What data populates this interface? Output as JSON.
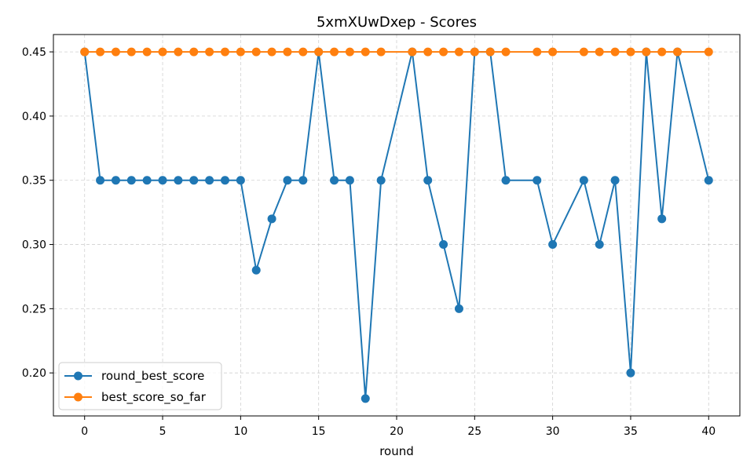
{
  "chart_data": {
    "type": "line",
    "title": "5xmXUwDxep - Scores",
    "xlabel": "round",
    "ylabel": "",
    "xlim": [
      -2,
      42
    ],
    "ylim": [
      0.1665,
      0.4635
    ],
    "xticks": [
      0,
      5,
      10,
      15,
      20,
      25,
      30,
      35,
      40
    ],
    "xtick_labels": [
      "0",
      "5",
      "10",
      "15",
      "20",
      "25",
      "30",
      "35",
      "40"
    ],
    "yticks": [
      0.2,
      0.25,
      0.3,
      0.35,
      0.4,
      0.45
    ],
    "ytick_labels": [
      "0.20",
      "0.25",
      "0.30",
      "0.35",
      "0.40",
      "0.45"
    ],
    "grid": true,
    "legend_position": "lower-left",
    "series": [
      {
        "name": "round_best_score",
        "color": "#1f77b4",
        "x": [
          0,
          1,
          2,
          3,
          4,
          5,
          6,
          7,
          8,
          9,
          10,
          11,
          12,
          13,
          14,
          15,
          16,
          17,
          18,
          19,
          21,
          22,
          23,
          24,
          25,
          26,
          27,
          29,
          30,
          32,
          33,
          34,
          35,
          36,
          37,
          38,
          40
        ],
        "y": [
          0.45,
          0.35,
          0.35,
          0.35,
          0.35,
          0.35,
          0.35,
          0.35,
          0.35,
          0.35,
          0.35,
          0.28,
          0.32,
          0.35,
          0.35,
          0.45,
          0.35,
          0.35,
          0.18,
          0.35,
          0.45,
          0.35,
          0.3,
          0.25,
          0.45,
          0.45,
          0.35,
          0.35,
          0.3,
          0.35,
          0.3,
          0.35,
          0.2,
          0.45,
          0.32,
          0.45,
          0.35
        ]
      },
      {
        "name": "best_score_so_far",
        "color": "#ff7f0e",
        "x": [
          0,
          1,
          2,
          3,
          4,
          5,
          6,
          7,
          8,
          9,
          10,
          11,
          12,
          13,
          14,
          15,
          16,
          17,
          18,
          19,
          21,
          22,
          23,
          24,
          25,
          26,
          27,
          29,
          30,
          32,
          33,
          34,
          35,
          36,
          37,
          38,
          40
        ],
        "y": [
          0.45,
          0.45,
          0.45,
          0.45,
          0.45,
          0.45,
          0.45,
          0.45,
          0.45,
          0.45,
          0.45,
          0.45,
          0.45,
          0.45,
          0.45,
          0.45,
          0.45,
          0.45,
          0.45,
          0.45,
          0.45,
          0.45,
          0.45,
          0.45,
          0.45,
          0.45,
          0.45,
          0.45,
          0.45,
          0.45,
          0.45,
          0.45,
          0.45,
          0.45,
          0.45,
          0.45,
          0.45
        ]
      }
    ]
  }
}
